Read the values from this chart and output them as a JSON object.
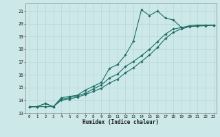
{
  "xlabel": "Humidex (Indice chaleur)",
  "bg_color": "#cce8e8",
  "grid_color": "#b8d4d4",
  "line_color": "#1a6e64",
  "xlim": [
    -0.5,
    23.4
  ],
  "ylim": [
    13.0,
    21.6
  ],
  "yticks": [
    13,
    14,
    15,
    16,
    17,
    18,
    19,
    20,
    21
  ],
  "xticks": [
    0,
    1,
    2,
    3,
    4,
    5,
    6,
    7,
    8,
    9,
    10,
    11,
    12,
    13,
    14,
    15,
    16,
    17,
    18,
    19,
    20,
    21,
    22,
    23
  ],
  "line1_x": [
    0,
    1,
    2,
    3,
    4,
    5,
    6,
    7,
    8,
    9,
    10,
    11,
    12,
    13,
    14,
    15,
    16,
    17,
    18,
    19,
    20,
    21,
    22,
    23
  ],
  "line1_y": [
    13.5,
    13.5,
    13.75,
    13.5,
    14.2,
    14.3,
    14.4,
    14.8,
    15.1,
    15.4,
    16.5,
    16.8,
    17.55,
    18.65,
    21.1,
    20.65,
    21.0,
    20.45,
    20.3,
    19.7,
    19.85,
    19.9,
    19.9,
    19.9
  ],
  "line2_x": [
    0,
    1,
    2,
    3,
    4,
    5,
    6,
    7,
    8,
    9,
    10,
    11,
    12,
    13,
    14,
    15,
    16,
    17,
    18,
    19,
    20,
    21,
    22,
    23
  ],
  "line2_y": [
    13.5,
    13.5,
    13.75,
    13.5,
    14.1,
    14.2,
    14.35,
    14.55,
    14.9,
    15.2,
    15.75,
    16.05,
    16.65,
    17.05,
    17.5,
    18.0,
    18.6,
    19.2,
    19.6,
    19.7,
    19.8,
    19.85,
    19.9,
    19.9
  ],
  "line3_x": [
    0,
    1,
    2,
    3,
    4,
    5,
    6,
    7,
    8,
    9,
    10,
    11,
    12,
    13,
    14,
    15,
    16,
    17,
    18,
    19,
    20,
    21,
    22,
    23
  ],
  "line3_y": [
    13.5,
    13.5,
    13.5,
    13.5,
    14.0,
    14.1,
    14.25,
    14.45,
    14.7,
    14.95,
    15.35,
    15.65,
    16.15,
    16.55,
    17.05,
    17.55,
    18.15,
    18.85,
    19.35,
    19.6,
    19.78,
    19.82,
    19.85,
    19.88
  ]
}
